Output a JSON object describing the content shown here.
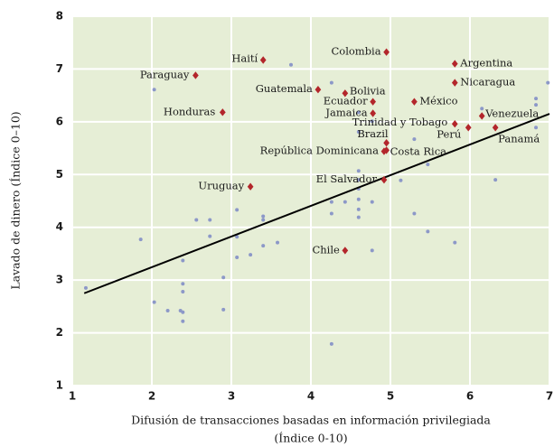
{
  "chart_data": {
    "type": "scatter",
    "x_label": [
      "Difusión de transacciones basadas en información privilegiada",
      "(Índice 0-10)"
    ],
    "y_label": "Lavado de dinero (Índice 0–10)",
    "xlim": [
      1,
      7
    ],
    "xticks": [
      1,
      2,
      3,
      4,
      5,
      6,
      7
    ],
    "ylim": [
      1,
      8
    ],
    "yticks": [
      1,
      2,
      3,
      4,
      5,
      6,
      7,
      8
    ],
    "grid": true,
    "background": "#e6eed6",
    "labeled_points": {
      "color": "#b3262b",
      "labels": [
        "Paraguay",
        "Haití",
        "Colombia",
        "Argentina",
        "Nicaragua",
        "Guatemala",
        "Bolivia",
        "Ecuador",
        "México",
        "Jamaica",
        "Honduras",
        "Venezuela",
        "Trinidad y Tobago",
        "Perú",
        "Panamá",
        "Brazil",
        "Costa Rica",
        "República Dominicana",
        "El Salvador",
        "Uruguay",
        "Chile"
      ],
      "x": [
        2.55,
        3.4,
        4.95,
        5.81,
        5.81,
        4.09,
        4.43,
        4.78,
        5.3,
        4.78,
        2.89,
        6.15,
        5.81,
        5.98,
        6.32,
        4.95,
        4.95,
        4.92,
        4.92,
        3.24,
        4.43
      ],
      "y": [
        6.88,
        7.17,
        7.32,
        7.1,
        6.74,
        6.61,
        6.54,
        6.38,
        6.38,
        6.16,
        6.18,
        6.11,
        5.96,
        5.89,
        5.89,
        5.6,
        5.46,
        5.44,
        4.9,
        4.77,
        3.56
      ]
    },
    "other_points": {
      "color": "#8c98c8",
      "x": [
        1.17,
        1.86,
        2.03,
        2.03,
        2.2,
        2.36,
        2.39,
        2.39,
        2.39,
        2.39,
        2.39,
        2.56,
        2.73,
        2.73,
        2.9,
        2.9,
        3.07,
        3.07,
        3.07,
        3.24,
        3.4,
        3.4,
        3.4,
        3.58,
        3.75,
        4.26,
        4.26,
        4.26,
        4.26,
        4.43,
        4.6,
        4.6,
        4.6,
        4.6,
        4.6,
        4.6,
        4.6,
        4.6,
        4.77,
        4.77,
        4.77,
        5.13,
        5.3,
        5.3,
        5.47,
        5.47,
        5.81,
        6.15,
        6.32,
        6.83,
        6.83,
        6.83,
        6.98
      ],
      "y": [
        2.85,
        3.77,
        6.61,
        2.58,
        2.42,
        2.42,
        2.93,
        3.37,
        2.78,
        2.39,
        2.22,
        4.14,
        4.14,
        3.83,
        3.05,
        2.44,
        4.33,
        3.82,
        3.43,
        3.48,
        4.21,
        4.14,
        3.65,
        3.71,
        7.08,
        6.74,
        1.79,
        4.48,
        4.26,
        4.48,
        6.18,
        5.81,
        5.07,
        4.9,
        4.73,
        4.53,
        4.34,
        4.19,
        4.48,
        3.56,
        6.01,
        4.89,
        5.67,
        4.26,
        5.19,
        3.92,
        3.71,
        6.25,
        4.9,
        6.44,
        6.32,
        5.89,
        6.74
      ]
    },
    "trendline": {
      "color": "#000000",
      "x": [
        1.15,
        7
      ],
      "y": [
        2.75,
        6.15
      ]
    }
  }
}
